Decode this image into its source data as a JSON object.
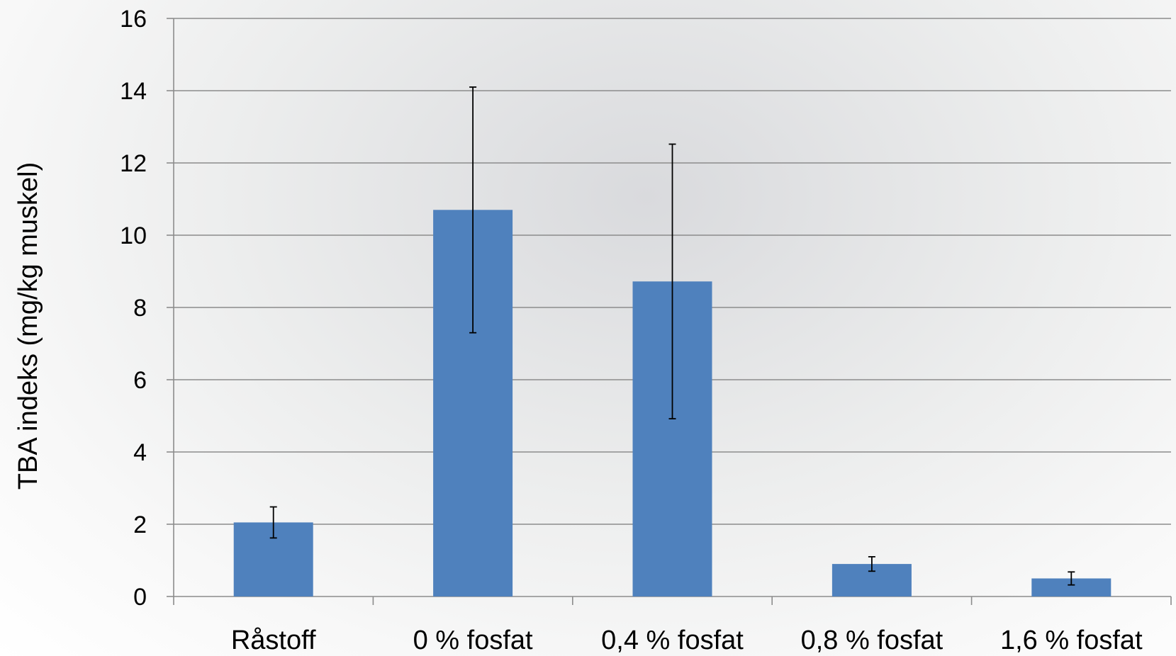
{
  "chart_data": {
    "type": "bar",
    "title": "",
    "xlabel": "",
    "ylabel": "TBA indeks  (mg/kg muskel)",
    "categories": [
      "Råstoff",
      "0 % fosfat",
      "0,4 % fosfat",
      "0,8 % fosfat",
      "1,6 % fosfat"
    ],
    "values": [
      2.05,
      10.7,
      8.72,
      0.9,
      0.5
    ],
    "error": [
      0.43,
      3.4,
      3.8,
      0.2,
      0.18
    ],
    "ylim": [
      0,
      16
    ],
    "yticks": [
      "0",
      "2",
      "4",
      "6",
      "8",
      "10",
      "12",
      "14",
      "16"
    ],
    "grid": true,
    "bar_color": "#4f81bd"
  }
}
